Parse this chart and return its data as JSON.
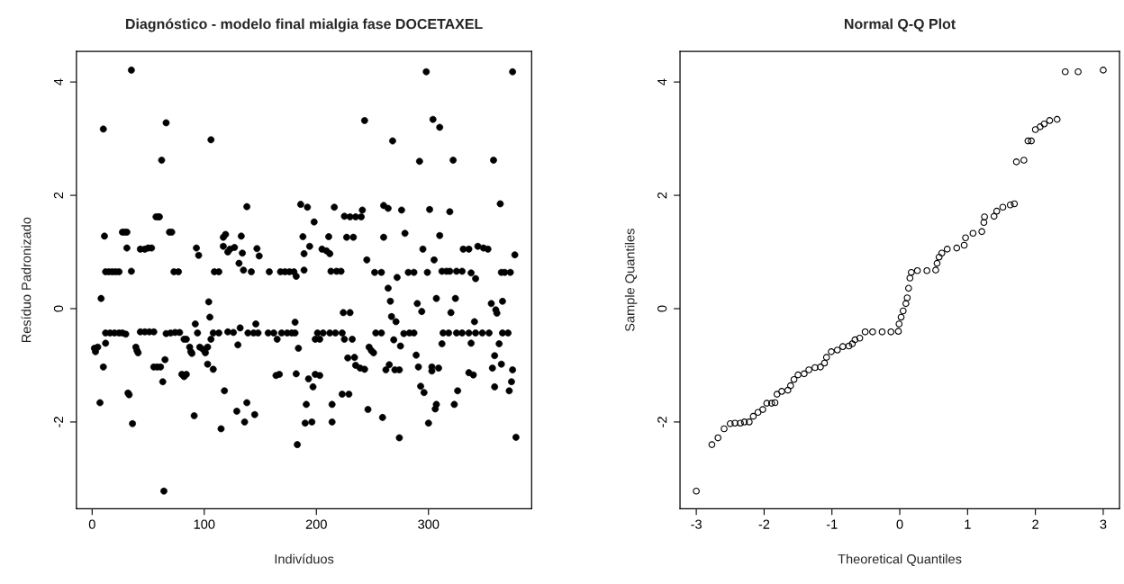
{
  "chart_data": [
    {
      "type": "scatter",
      "title": "Diagnóstico - modelo final mialgia fase DOCETAXEL",
      "xlabel": "Indivíduos",
      "ylabel": "Resíduo Padronizado",
      "marker": "circle",
      "xlim": [
        -14,
        392
      ],
      "ylim": [
        -3.53,
        4.54
      ],
      "xticks": [
        0,
        100,
        200,
        300
      ],
      "yticks": [
        -2,
        0,
        2,
        4
      ],
      "series": [
        {
          "color": "#000000",
          "x": [
            35,
            10,
            66,
            62,
            106,
            138,
            57,
            59,
            60,
            27,
            29,
            31,
            11,
            31,
            43,
            47,
            50,
            53,
            69,
            71,
            12,
            15,
            18,
            21,
            24,
            35,
            73,
            77,
            93,
            95,
            109,
            113,
            117,
            119,
            117,
            121,
            123,
            127,
            133,
            134,
            131,
            135,
            142,
            147,
            149,
            158,
            168,
            172,
            176,
            180,
            182,
            8,
            104,
            105,
            92,
            94,
            12,
            16,
            20,
            24,
            27,
            30,
            43,
            47,
            51,
            55,
            66,
            70,
            74,
            78,
            108,
            113,
            121,
            126,
            132,
            130,
            139,
            144,
            148,
            146,
            157,
            162,
            169,
            174,
            178,
            181,
            181,
            82,
            84,
            106,
            165,
            2,
            3,
            5,
            12,
            39,
            40,
            41,
            87,
            88,
            89,
            96,
            99,
            101,
            103,
            184,
            10,
            55,
            58,
            61,
            65,
            63,
            80,
            82,
            84,
            103,
            108,
            164,
            167,
            182,
            32,
            33,
            7,
            118,
            36,
            91,
            129,
            138,
            136,
            145,
            115,
            183,
            64,
            298,
            375,
            243,
            304,
            310,
            268,
            292,
            322,
            358,
            364,
            186,
            192,
            198,
            216,
            225,
            230,
            235,
            240,
            241,
            260,
            264,
            276,
            301,
            319,
            188,
            211,
            227,
            233,
            260,
            279,
            310,
            189,
            194,
            205,
            209,
            212,
            295,
            331,
            336,
            344,
            349,
            353,
            377,
            245,
            305,
            189,
            213,
            218,
            222,
            252,
            258,
            282,
            287,
            272,
            299,
            312,
            316,
            319,
            325,
            330,
            338,
            342,
            365,
            368,
            373,
            264,
            266,
            290,
            294,
            307,
            324,
            320,
            356,
            366,
            360,
            361,
            224,
            230,
            267,
            271,
            341,
            201,
            206,
            212,
            217,
            223,
            253,
            258,
            278,
            283,
            287,
            313,
            318,
            325,
            330,
            336,
            342,
            348,
            354,
            366,
            371,
            199,
            203,
            225,
            232,
            269,
            275,
            312,
            338,
            363,
            247,
            249,
            251,
            289,
            359,
            228,
            234,
            235,
            239,
            243,
            262,
            265,
            270,
            274,
            291,
            303,
            303,
            309,
            336,
            340,
            357,
            365,
            375,
            193,
            197,
            199,
            203,
            223,
            229,
            293,
            296,
            326,
            359,
            374,
            372,
            191,
            214,
            307,
            306,
            323,
            190,
            196,
            214,
            246,
            259,
            300,
            274,
            378
          ],
          "values": [
            4.21,
            3.17,
            3.28,
            2.62,
            2.98,
            1.8,
            1.62,
            1.62,
            1.62,
            1.35,
            1.35,
            1.35,
            1.28,
            1.07,
            1.05,
            1.05,
            1.07,
            1.07,
            1.35,
            1.35,
            0.65,
            0.65,
            0.65,
            0.65,
            0.65,
            0.66,
            0.65,
            0.65,
            1.07,
            0.94,
            0.65,
            0.65,
            1.26,
            1.31,
            1.1,
            1.0,
            1.05,
            1.08,
            1.28,
            0.98,
            0.8,
            0.68,
            0.65,
            1.06,
            0.93,
            0.65,
            0.65,
            0.65,
            0.65,
            0.65,
            0.57,
            0.18,
            0.12,
            -0.15,
            -0.27,
            -0.43,
            -0.43,
            -0.43,
            -0.43,
            -0.43,
            -0.43,
            -0.45,
            -0.41,
            -0.41,
            -0.41,
            -0.41,
            -0.44,
            -0.43,
            -0.42,
            -0.42,
            -0.43,
            -0.43,
            -0.41,
            -0.42,
            -0.34,
            -0.64,
            -0.43,
            -0.43,
            -0.43,
            -0.27,
            -0.43,
            -0.43,
            -0.43,
            -0.43,
            -0.43,
            -0.43,
            -0.24,
            -0.54,
            -0.54,
            -0.54,
            -0.54,
            -0.7,
            -0.76,
            -0.68,
            -0.61,
            -0.68,
            -0.74,
            -0.78,
            -0.68,
            -0.76,
            -0.79,
            -0.68,
            -0.72,
            -0.78,
            -0.68,
            -0.7,
            -1.03,
            -1.03,
            -1.03,
            -1.03,
            -0.9,
            -1.29,
            -1.16,
            -1.2,
            -1.16,
            -0.98,
            -1.07,
            -1.18,
            -1.16,
            -1.15,
            -1.49,
            -1.52,
            -1.66,
            -1.45,
            -2.03,
            -1.89,
            -1.81,
            -1.66,
            -2.0,
            -1.87,
            -2.12,
            -2.4,
            -3.22,
            4.18,
            4.18,
            3.32,
            3.34,
            3.2,
            2.96,
            2.6,
            2.62,
            2.62,
            1.85,
            1.84,
            1.79,
            1.53,
            1.79,
            1.63,
            1.62,
            1.62,
            1.62,
            1.74,
            1.82,
            1.77,
            1.74,
            1.75,
            1.71,
            1.27,
            1.27,
            1.26,
            1.26,
            1.26,
            1.33,
            1.29,
            0.97,
            1.1,
            1.05,
            1.02,
            0.97,
            1.05,
            1.05,
            1.05,
            1.1,
            1.07,
            1.05,
            0.95,
            0.86,
            0.86,
            0.68,
            0.66,
            0.66,
            0.66,
            0.64,
            0.64,
            0.64,
            0.64,
            0.55,
            0.64,
            0.66,
            0.66,
            0.66,
            0.66,
            0.66,
            0.63,
            0.53,
            0.64,
            0.64,
            0.64,
            0.36,
            0.13,
            0.09,
            -0.05,
            0.18,
            0.18,
            -0.07,
            0.09,
            0.13,
            -0.02,
            -0.08,
            -0.07,
            -0.07,
            -0.14,
            -0.23,
            -0.23,
            -0.43,
            -0.43,
            -0.43,
            -0.43,
            -0.43,
            -0.43,
            -0.43,
            -0.44,
            -0.43,
            -0.43,
            -0.43,
            -0.43,
            -0.43,
            -0.43,
            -0.43,
            -0.43,
            -0.43,
            -0.43,
            -0.43,
            -0.43,
            -0.54,
            -0.54,
            -0.54,
            -0.54,
            -0.55,
            -0.66,
            -0.62,
            -0.61,
            -0.62,
            -0.68,
            -0.74,
            -0.78,
            -0.82,
            -0.83,
            -0.87,
            -0.86,
            -1.0,
            -1.05,
            -1.07,
            -1.08,
            -0.99,
            -1.08,
            -1.08,
            -1.03,
            -1.03,
            -1.1,
            -1.05,
            -1.13,
            -1.17,
            -1.05,
            -0.98,
            -1.08,
            -1.24,
            -1.38,
            -1.16,
            -1.18,
            -1.51,
            -1.51,
            -1.37,
            -1.48,
            -1.45,
            -1.38,
            -1.29,
            -1.45,
            -1.69,
            -1.69,
            -1.69,
            -1.77,
            -1.69,
            -2.02,
            -2.0,
            -2.0,
            -1.78,
            -1.92,
            -2.02,
            -2.28,
            -2.27
          ]
        }
      ]
    },
    {
      "type": "scatter",
      "title": "Normal Q-Q Plot",
      "xlabel": "Theoretical Quantiles",
      "ylabel": "Sample Quantiles",
      "marker": "circle",
      "xlim": [
        -3.24,
        3.24
      ],
      "ylim": [
        -3.53,
        4.54
      ],
      "xticks": [
        -3,
        -2,
        -1,
        0,
        1,
        2,
        3
      ],
      "yticks": [
        -2,
        0,
        2,
        4
      ],
      "series": [
        {
          "color": "#000000",
          "x": [
            -3.0,
            -2.77,
            -2.68,
            -2.59,
            -2.5,
            -2.43,
            -2.35,
            -2.29,
            -2.22,
            -2.16,
            -2.09,
            -2.02,
            -1.96,
            -1.89,
            -1.84,
            -1.81,
            -1.74,
            -1.65,
            -1.61,
            -1.56,
            -1.5,
            -1.41,
            -1.34,
            -1.25,
            -1.17,
            -1.11,
            -1.08,
            -1.01,
            -0.92,
            -0.84,
            -0.75,
            -0.7,
            -0.66,
            -0.59,
            -0.51,
            -0.4,
            -0.26,
            -0.13,
            -0.02,
            -0.01,
            0.02,
            0.05,
            0.09,
            0.11,
            0.13,
            0.15,
            0.17,
            0.26,
            0.4,
            0.53,
            0.55,
            0.58,
            0.62,
            0.7,
            0.84,
            0.95,
            0.97,
            1.08,
            1.21,
            1.24,
            1.25,
            1.39,
            1.43,
            1.52,
            1.63,
            1.69,
            1.72,
            1.83,
            1.89,
            1.94,
            2.0,
            2.07,
            2.13,
            2.21,
            2.32,
            2.44,
            2.63,
            3.0
          ],
          "values": [
            -3.22,
            -2.4,
            -2.28,
            -2.12,
            -2.03,
            -2.02,
            -2.02,
            -2.0,
            -2.0,
            -1.9,
            -1.83,
            -1.78,
            -1.67,
            -1.67,
            -1.66,
            -1.51,
            -1.46,
            -1.44,
            -1.36,
            -1.25,
            -1.17,
            -1.15,
            -1.08,
            -1.04,
            -1.03,
            -0.96,
            -0.86,
            -0.76,
            -0.73,
            -0.67,
            -0.66,
            -0.62,
            -0.55,
            -0.52,
            -0.41,
            -0.41,
            -0.41,
            -0.41,
            -0.4,
            -0.27,
            -0.15,
            -0.04,
            0.09,
            0.19,
            0.36,
            0.54,
            0.64,
            0.67,
            0.67,
            0.68,
            0.8,
            0.91,
            0.98,
            1.05,
            1.07,
            1.12,
            1.25,
            1.33,
            1.36,
            1.52,
            1.62,
            1.63,
            1.72,
            1.79,
            1.83,
            1.85,
            2.59,
            2.62,
            2.96,
            2.96,
            3.16,
            3.21,
            3.26,
            3.32,
            3.34,
            4.18,
            4.18,
            4.21
          ]
        }
      ]
    }
  ]
}
